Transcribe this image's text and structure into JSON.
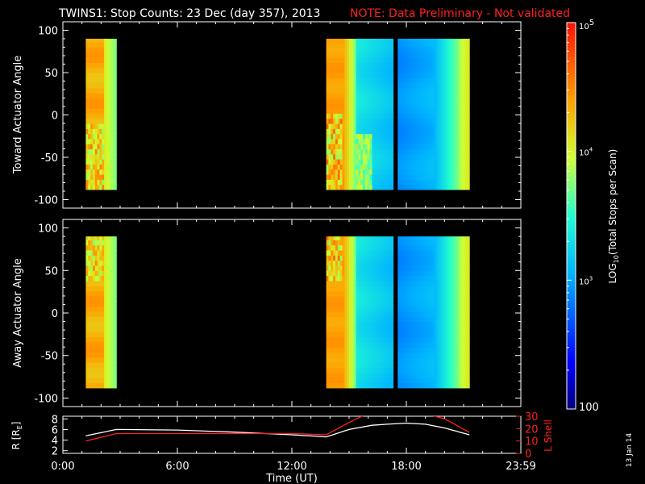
{
  "header": {
    "title": "TWINS1: Stop Counts: 23 Dec (day 357), 2013",
    "note": "NOTE: Data Preliminary - Not validated",
    "note_color": "#ff2020"
  },
  "stamp": "13 Jan 14",
  "chart_data": [
    {
      "type": "heatmap",
      "panel": "toward",
      "ylabel": "Toward Actuator Angle",
      "ylim": [
        -110,
        110
      ],
      "yticks": [
        "100",
        "50",
        "0",
        "-50",
        "-100"
      ],
      "xlim_hours": [
        0,
        24
      ],
      "data_intervals_hours": [
        [
          1.2,
          2.8
        ],
        [
          13.8,
          17.3
        ],
        [
          17.55,
          21.3
        ]
      ],
      "angle_range": [
        -88,
        90
      ]
    },
    {
      "type": "heatmap",
      "panel": "away",
      "ylabel": "Away Actuator Angle",
      "ylim": [
        -110,
        110
      ],
      "yticks": [
        "100",
        "50",
        "0",
        "-50",
        "-100"
      ],
      "xlim_hours": [
        0,
        24
      ],
      "data_intervals_hours": [
        [
          1.2,
          2.8
        ],
        [
          13.8,
          17.3
        ],
        [
          17.55,
          21.3
        ]
      ],
      "angle_range": [
        -88,
        90
      ]
    },
    {
      "type": "line",
      "panel": "orbit",
      "ylabel_left": "R [R",
      "ylabel_left_sub": "E",
      "ylabel_left_end": "]",
      "yticks_left": [
        "8",
        "6",
        "4",
        "2"
      ],
      "ylim_left": [
        1.5,
        8.5
      ],
      "ylabel_right": "L Shell",
      "yticks_right": [
        "30",
        "20",
        "10",
        "0"
      ],
      "ylim_right": [
        0,
        30
      ],
      "right_color": "#ff2020",
      "xlabel": "Time (UT)",
      "xticks": [
        "0:00",
        "6:00",
        "12:00",
        "18:00",
        "23:59"
      ],
      "x_hours": [
        1.2,
        2.8,
        6,
        9,
        12,
        13.8,
        15,
        16.2,
        17,
        18,
        19,
        20,
        21.3
      ],
      "series": [
        {
          "color": "#ffffff",
          "values": [
            4.8,
            6.0,
            5.9,
            5.5,
            5.0,
            4.6,
            6.0,
            6.8,
            7.0,
            7.2,
            7.0,
            6.3,
            5.0
          ]
        },
        {
          "color": "#ff2020",
          "values": [
            10,
            16,
            16,
            16,
            16,
            15,
            25,
            34,
            null,
            null,
            32,
            28,
            17
          ]
        }
      ]
    }
  ],
  "colorbar": {
    "label": "LOG",
    "label_sub": "10",
    "label_end": "(Total Stops per Scan)",
    "ticks": [
      "10",
      "10",
      "10",
      "100"
    ],
    "tick_exps": [
      "5",
      "4",
      "3",
      ""
    ],
    "log_range": [
      2,
      5
    ]
  }
}
